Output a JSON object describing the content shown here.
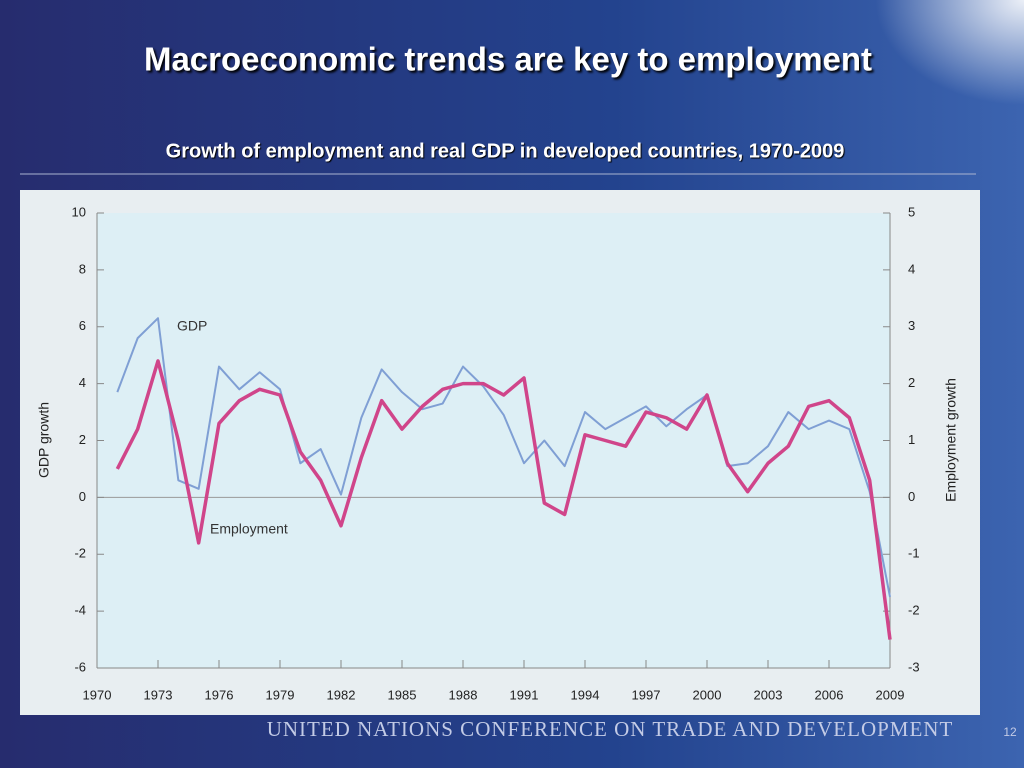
{
  "slide": {
    "title": "Macroeconomic trends are key to employment",
    "footer": "UNITED NATIONS CONFERENCE ON TRADE AND DEVELOPMENT",
    "page_number": "12"
  },
  "chart_data": {
    "type": "line",
    "title": "Growth of employment and real GDP in developed countries, 1970-2009",
    "y_label": "GDP growth",
    "y2_label": "Employment growth",
    "x": [
      1971,
      1972,
      1973,
      1974,
      1975,
      1976,
      1977,
      1978,
      1979,
      1980,
      1981,
      1982,
      1983,
      1984,
      1985,
      1986,
      1987,
      1988,
      1989,
      1990,
      1991,
      1992,
      1993,
      1994,
      1995,
      1996,
      1997,
      1998,
      1999,
      2000,
      2001,
      2002,
      2003,
      2004,
      2005,
      2006,
      2007,
      2008,
      2009
    ],
    "series": [
      {
        "name": "GDP",
        "color": "#7f9fd4",
        "axis": "y",
        "values": [
          3.7,
          5.6,
          6.3,
          0.6,
          0.3,
          4.6,
          3.8,
          4.4,
          3.8,
          1.2,
          1.7,
          0.1,
          2.8,
          4.5,
          3.7,
          3.1,
          3.3,
          4.6,
          3.9,
          2.9,
          1.2,
          2.0,
          1.1,
          3.0,
          2.4,
          2.8,
          3.2,
          2.5,
          3.1,
          3.6,
          1.1,
          1.2,
          1.8,
          3.0,
          2.4,
          2.7,
          2.4,
          0.2,
          -3.5
        ]
      },
      {
        "name": "Employment",
        "color": "#d0458a",
        "axis": "y2",
        "values": [
          0.5,
          1.2,
          2.4,
          1.0,
          -0.8,
          1.3,
          1.7,
          1.9,
          1.8,
          0.8,
          0.3,
          -0.5,
          0.7,
          1.7,
          1.2,
          1.6,
          1.9,
          2.0,
          2.0,
          1.8,
          2.1,
          -0.1,
          -0.3,
          1.1,
          1.0,
          0.9,
          1.5,
          1.4,
          1.2,
          1.8,
          0.6,
          0.1,
          0.6,
          0.9,
          1.6,
          1.7,
          1.4,
          0.3,
          -2.5
        ]
      }
    ],
    "xlim": [
      1970,
      2009
    ],
    "xticks": [
      1970,
      1973,
      1976,
      1979,
      1982,
      1985,
      1988,
      1991,
      1994,
      1997,
      2000,
      2003,
      2006,
      2009
    ],
    "ylim": [
      -6,
      10
    ],
    "yticks": [
      -6,
      -4,
      -2,
      0,
      2,
      4,
      6,
      8,
      10
    ],
    "y2lim": [
      -3,
      5
    ],
    "y2ticks": [
      -3,
      -2,
      -1,
      0,
      1,
      2,
      3,
      4,
      5
    ]
  }
}
